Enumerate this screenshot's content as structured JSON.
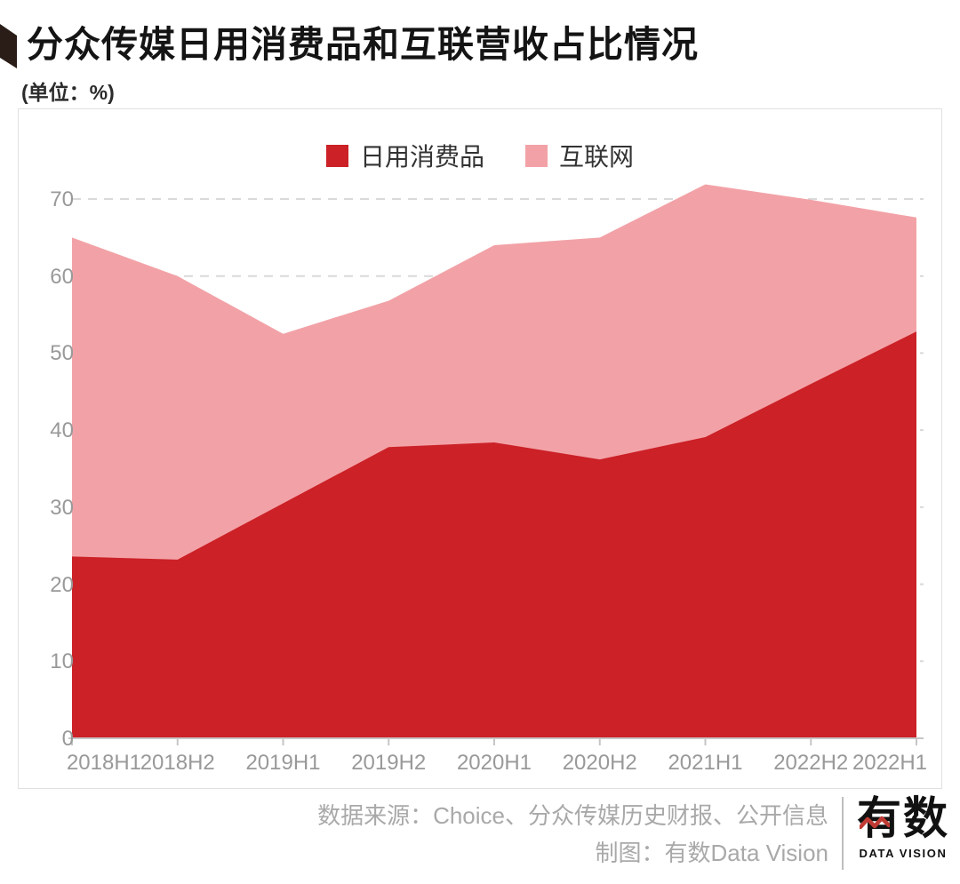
{
  "header": {
    "title": "分众传媒日用消费品和互联营收占比情况",
    "unit": "(单位：%)"
  },
  "chart_data": {
    "type": "area",
    "stacked": true,
    "categories": [
      "2018H1",
      "2018H2",
      "2019H1",
      "2019H2",
      "2020H1",
      "2020H2",
      "2021H1",
      "2022H2",
      "2022H1"
    ],
    "series": [
      {
        "name": "日用消费品",
        "color": "#cb2127",
        "values": [
          23.6,
          23.2,
          30.5,
          37.8,
          38.4,
          36.2,
          39.1,
          46.0,
          52.8
        ]
      },
      {
        "name": "互联网",
        "color": "#f2a2a7",
        "values": [
          41.4,
          36.8,
          22.0,
          19.0,
          25.6,
          28.8,
          32.8,
          23.9,
          14.8
        ]
      }
    ],
    "stack_totals": [
      65.0,
      60.0,
      52.5,
      56.8,
      64.0,
      65.0,
      71.9,
      69.9,
      67.6
    ],
    "title": "分众传媒日用消费品和互联营收占比情况",
    "xlabel": "",
    "ylabel": "(单位：%)",
    "ylim": [
      0,
      75
    ],
    "yticks": [
      0,
      10,
      20,
      30,
      40,
      50,
      60,
      70
    ],
    "grid": "horizontal-dashed",
    "legend_position": "top-center",
    "colors": {
      "gridline": "#d9d9d9",
      "axis_line": "#c6c6c6",
      "axis_text": "#999999"
    }
  },
  "footer": {
    "source": "数据来源：Choice、分众传媒历史财报、公开信息",
    "credit": "制图：有数Data Vision",
    "logo_text": "有数",
    "logo_subtext": "DATA VISION",
    "logo_accent_color": "#bf3a33"
  }
}
